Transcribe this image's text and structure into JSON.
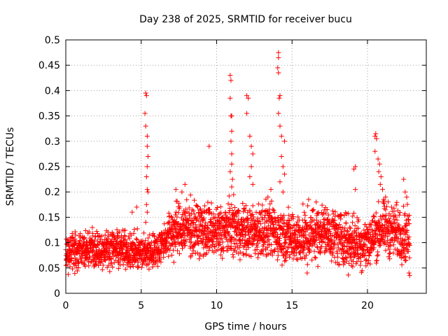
{
  "chart_data": {
    "type": "scatter",
    "title": "Day 238 of 2025, SRMTID for receiver bucu",
    "xlabel": "GPS time / hours",
    "ylabel": "SRMTID / TECUs",
    "xlim": [
      0,
      23.9
    ],
    "ylim": [
      0,
      0.5
    ],
    "xticks": [
      0,
      5,
      10,
      15,
      20
    ],
    "xtick_labels": [
      "0",
      "5",
      "10",
      "15",
      "20"
    ],
    "yticks": [
      0,
      0.05,
      0.1,
      0.15,
      0.2,
      0.25,
      0.3,
      0.35,
      0.4,
      0.45,
      0.5
    ],
    "ytick_labels": [
      "0",
      "0.05",
      "0.1",
      "0.15",
      "0.2",
      "0.25",
      "0.3",
      "0.35",
      "0.4",
      "0.45",
      "0.5"
    ],
    "grid": true,
    "marker": "plus",
    "marker_color": "#ff0000",
    "series": [
      {
        "name": "SRMTID",
        "color": "#ff0000",
        "baseline": [
          {
            "x": 0.0,
            "y": 0.08
          },
          {
            "x": 1.0,
            "y": 0.085
          },
          {
            "x": 2.0,
            "y": 0.085
          },
          {
            "x": 3.0,
            "y": 0.09
          },
          {
            "x": 4.0,
            "y": 0.085
          },
          {
            "x": 5.0,
            "y": 0.08
          },
          {
            "x": 6.0,
            "y": 0.085
          },
          {
            "x": 7.0,
            "y": 0.12
          },
          {
            "x": 8.0,
            "y": 0.13
          },
          {
            "x": 9.0,
            "y": 0.125
          },
          {
            "x": 10.0,
            "y": 0.12
          },
          {
            "x": 11.0,
            "y": 0.13
          },
          {
            "x": 12.0,
            "y": 0.12
          },
          {
            "x": 13.0,
            "y": 0.125
          },
          {
            "x": 14.0,
            "y": 0.12
          },
          {
            "x": 15.0,
            "y": 0.11
          },
          {
            "x": 16.0,
            "y": 0.11
          },
          {
            "x": 17.0,
            "y": 0.125
          },
          {
            "x": 18.0,
            "y": 0.11
          },
          {
            "x": 19.0,
            "y": 0.1
          },
          {
            "x": 20.0,
            "y": 0.1
          },
          {
            "x": 21.0,
            "y": 0.13
          },
          {
            "x": 22.0,
            "y": 0.12
          },
          {
            "x": 22.8,
            "y": 0.11
          }
        ],
        "spikes": [
          {
            "x": 4.4,
            "y": 0.16
          },
          {
            "x": 4.7,
            "y": 0.17
          },
          {
            "x": 5.3,
            "y": 0.395
          },
          {
            "x": 5.35,
            "y": 0.39
          },
          {
            "x": 5.25,
            "y": 0.355
          },
          {
            "x": 5.3,
            "y": 0.33
          },
          {
            "x": 5.4,
            "y": 0.31
          },
          {
            "x": 5.4,
            "y": 0.29
          },
          {
            "x": 5.45,
            "y": 0.27
          },
          {
            "x": 5.4,
            "y": 0.25
          },
          {
            "x": 5.35,
            "y": 0.23
          },
          {
            "x": 5.4,
            "y": 0.205
          },
          {
            "x": 5.45,
            "y": 0.2
          },
          {
            "x": 5.35,
            "y": 0.175
          },
          {
            "x": 5.4,
            "y": 0.16
          },
          {
            "x": 5.3,
            "y": 0.14
          },
          {
            "x": 7.7,
            "y": 0.2
          },
          {
            "x": 7.9,
            "y": 0.215
          },
          {
            "x": 7.3,
            "y": 0.205
          },
          {
            "x": 9.5,
            "y": 0.29
          },
          {
            "x": 10.9,
            "y": 0.43
          },
          {
            "x": 10.95,
            "y": 0.42
          },
          {
            "x": 10.9,
            "y": 0.385
          },
          {
            "x": 10.95,
            "y": 0.35
          },
          {
            "x": 11.0,
            "y": 0.35
          },
          {
            "x": 11.0,
            "y": 0.32
          },
          {
            "x": 10.95,
            "y": 0.3
          },
          {
            "x": 11.0,
            "y": 0.275
          },
          {
            "x": 11.0,
            "y": 0.255
          },
          {
            "x": 10.9,
            "y": 0.24
          },
          {
            "x": 11.05,
            "y": 0.225
          },
          {
            "x": 11.0,
            "y": 0.21
          },
          {
            "x": 12.0,
            "y": 0.39
          },
          {
            "x": 12.1,
            "y": 0.385
          },
          {
            "x": 12.0,
            "y": 0.355
          },
          {
            "x": 12.2,
            "y": 0.31
          },
          {
            "x": 12.3,
            "y": 0.29
          },
          {
            "x": 12.4,
            "y": 0.275
          },
          {
            "x": 12.3,
            "y": 0.25
          },
          {
            "x": 12.2,
            "y": 0.23
          },
          {
            "x": 12.4,
            "y": 0.215
          },
          {
            "x": 14.1,
            "y": 0.475
          },
          {
            "x": 14.1,
            "y": 0.465
          },
          {
            "x": 14.05,
            "y": 0.445
          },
          {
            "x": 14.1,
            "y": 0.435
          },
          {
            "x": 14.2,
            "y": 0.39
          },
          {
            "x": 14.15,
            "y": 0.385
          },
          {
            "x": 14.1,
            "y": 0.355
          },
          {
            "x": 14.2,
            "y": 0.33
          },
          {
            "x": 14.3,
            "y": 0.31
          },
          {
            "x": 14.5,
            "y": 0.3
          },
          {
            "x": 14.3,
            "y": 0.27
          },
          {
            "x": 14.4,
            "y": 0.25
          },
          {
            "x": 14.5,
            "y": 0.235
          },
          {
            "x": 14.2,
            "y": 0.22
          },
          {
            "x": 14.4,
            "y": 0.2
          },
          {
            "x": 13.6,
            "y": 0.205
          },
          {
            "x": 13.4,
            "y": 0.19
          },
          {
            "x": 16.1,
            "y": 0.185
          },
          {
            "x": 16.6,
            "y": 0.18
          },
          {
            "x": 19.2,
            "y": 0.25
          },
          {
            "x": 19.1,
            "y": 0.245
          },
          {
            "x": 19.2,
            "y": 0.205
          },
          {
            "x": 20.5,
            "y": 0.31
          },
          {
            "x": 20.55,
            "y": 0.315
          },
          {
            "x": 20.6,
            "y": 0.305
          },
          {
            "x": 20.5,
            "y": 0.28
          },
          {
            "x": 20.7,
            "y": 0.265
          },
          {
            "x": 20.8,
            "y": 0.255
          },
          {
            "x": 20.75,
            "y": 0.24
          },
          {
            "x": 20.9,
            "y": 0.23
          },
          {
            "x": 20.85,
            "y": 0.215
          },
          {
            "x": 21.0,
            "y": 0.205
          },
          {
            "x": 21.2,
            "y": 0.19
          },
          {
            "x": 22.4,
            "y": 0.225
          },
          {
            "x": 22.5,
            "y": 0.2
          },
          {
            "x": 22.6,
            "y": 0.19
          },
          {
            "x": 22.8,
            "y": 0.035
          },
          {
            "x": 22.75,
            "y": 0.04
          },
          {
            "x": 16.0,
            "y": 0.04
          }
        ]
      }
    ]
  }
}
